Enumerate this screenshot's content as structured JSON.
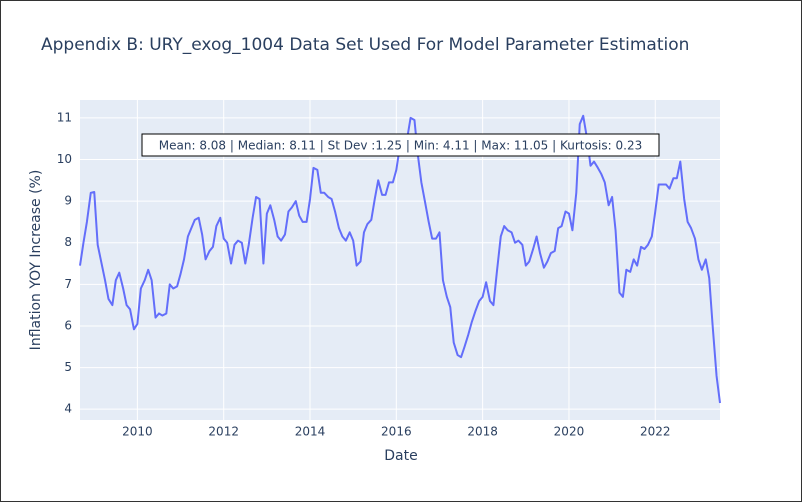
{
  "chart_data": {
    "type": "line",
    "title": "Appendix B: URY_exog_1004 Data Set Used For Model Parameter Estimation",
    "x_label": "Date",
    "y_label": "Inflation YOY Increase (%)",
    "annotation": "Mean: 8.08 | Median: 8.11 | St Dev :1.25 | Min: 4.11 | Max: 11.05 | Kurtosis: 0.23",
    "color": "#636efa",
    "grid": true,
    "xlim": [
      2008.67,
      2023.5
    ],
    "xticks": [
      2010,
      2012,
      2014,
      2016,
      2018,
      2020,
      2022
    ],
    "ylim": [
      3.74,
      11.43
    ],
    "yticks": [
      4,
      5,
      6,
      7,
      8,
      9,
      10,
      11
    ],
    "x": [
      2008.67,
      2008.75,
      2008.83,
      2008.92,
      2009.0,
      2009.08,
      2009.17,
      2009.25,
      2009.33,
      2009.42,
      2009.5,
      2009.58,
      2009.67,
      2009.75,
      2009.83,
      2009.92,
      2010.0,
      2010.08,
      2010.17,
      2010.25,
      2010.33,
      2010.42,
      2010.5,
      2010.58,
      2010.67,
      2010.75,
      2010.83,
      2010.92,
      2011.0,
      2011.08,
      2011.17,
      2011.25,
      2011.33,
      2011.42,
      2011.5,
      2011.58,
      2011.67,
      2011.75,
      2011.83,
      2011.92,
      2012.0,
      2012.08,
      2012.17,
      2012.25,
      2012.33,
      2012.42,
      2012.5,
      2012.58,
      2012.67,
      2012.75,
      2012.83,
      2012.92,
      2013.0,
      2013.08,
      2013.17,
      2013.25,
      2013.33,
      2013.42,
      2013.5,
      2013.58,
      2013.67,
      2013.75,
      2013.83,
      2013.92,
      2014.0,
      2014.08,
      2014.17,
      2014.25,
      2014.33,
      2014.42,
      2014.5,
      2014.58,
      2014.67,
      2014.75,
      2014.83,
      2014.92,
      2015.0,
      2015.08,
      2015.17,
      2015.25,
      2015.33,
      2015.42,
      2015.5,
      2015.58,
      2015.67,
      2015.75,
      2015.83,
      2015.92,
      2016.0,
      2016.08,
      2016.17,
      2016.25,
      2016.33,
      2016.42,
      2016.5,
      2016.58,
      2016.67,
      2016.75,
      2016.83,
      2016.92,
      2017.0,
      2017.08,
      2017.17,
      2017.25,
      2017.33,
      2017.42,
      2017.5,
      2017.58,
      2017.67,
      2017.75,
      2017.83,
      2017.92,
      2018.0,
      2018.08,
      2018.17,
      2018.25,
      2018.33,
      2018.42,
      2018.5,
      2018.58,
      2018.67,
      2018.75,
      2018.83,
      2018.92,
      2019.0,
      2019.08,
      2019.17,
      2019.25,
      2019.33,
      2019.42,
      2019.5,
      2019.58,
      2019.67,
      2019.75,
      2019.83,
      2019.92,
      2020.0,
      2020.08,
      2020.17,
      2020.25,
      2020.33,
      2020.42,
      2020.5,
      2020.58,
      2020.67,
      2020.75,
      2020.83,
      2020.92,
      2021.0,
      2021.08,
      2021.17,
      2021.25,
      2021.33,
      2021.42,
      2021.5,
      2021.58,
      2021.67,
      2021.75,
      2021.83,
      2021.92,
      2022.0,
      2022.08,
      2022.17,
      2022.25,
      2022.33,
      2022.42,
      2022.5,
      2022.58,
      2022.67,
      2022.75,
      2022.83,
      2022.92,
      2023.0,
      2023.08,
      2023.17,
      2023.25,
      2023.33,
      2023.42,
      2023.5
    ],
    "values": [
      7.45,
      8.0,
      8.5,
      9.2,
      9.22,
      7.95,
      7.5,
      7.1,
      6.65,
      6.5,
      7.1,
      7.28,
      6.9,
      6.5,
      6.4,
      5.92,
      6.05,
      6.9,
      7.1,
      7.35,
      7.1,
      6.2,
      6.3,
      6.25,
      6.3,
      7.0,
      6.9,
      6.95,
      7.25,
      7.6,
      8.15,
      8.35,
      8.55,
      8.6,
      8.2,
      7.6,
      7.8,
      7.9,
      8.4,
      8.6,
      8.1,
      8.0,
      7.5,
      7.95,
      8.05,
      8.0,
      7.5,
      7.95,
      8.6,
      9.1,
      9.05,
      7.5,
      8.7,
      8.9,
      8.55,
      8.15,
      8.05,
      8.2,
      8.75,
      8.85,
      9.0,
      8.65,
      8.5,
      8.5,
      9.05,
      9.8,
      9.75,
      9.2,
      9.2,
      9.1,
      9.05,
      8.75,
      8.35,
      8.15,
      8.05,
      8.25,
      8.05,
      7.45,
      7.55,
      8.25,
      8.45,
      8.55,
      9.05,
      9.5,
      9.15,
      9.15,
      9.45,
      9.45,
      9.75,
      10.3,
      10.55,
      10.5,
      11.0,
      10.95,
      10.1,
      9.45,
      8.95,
      8.5,
      8.1,
      8.1,
      8.25,
      7.1,
      6.7,
      6.45,
      5.6,
      5.3,
      5.25,
      5.5,
      5.8,
      6.1,
      6.35,
      6.6,
      6.7,
      7.05,
      6.6,
      6.5,
      7.3,
      8.15,
      8.4,
      8.3,
      8.25,
      8.0,
      8.05,
      7.95,
      7.45,
      7.55,
      7.85,
      8.15,
      7.75,
      7.4,
      7.55,
      7.75,
      7.8,
      8.35,
      8.4,
      8.75,
      8.7,
      8.3,
      9.2,
      10.85,
      11.05,
      10.5,
      9.85,
      9.95,
      9.8,
      9.65,
      9.45,
      8.9,
      9.1,
      8.3,
      6.8,
      6.7,
      7.35,
      7.3,
      7.6,
      7.45,
      7.9,
      7.85,
      7.95,
      8.15,
      8.75,
      9.4,
      9.4,
      9.4,
      9.3,
      9.55,
      9.55,
      9.95,
      9.05,
      8.5,
      8.35,
      8.1,
      7.6,
      7.35,
      7.6,
      7.15,
      6.0,
      4.8,
      4.15
    ]
  }
}
